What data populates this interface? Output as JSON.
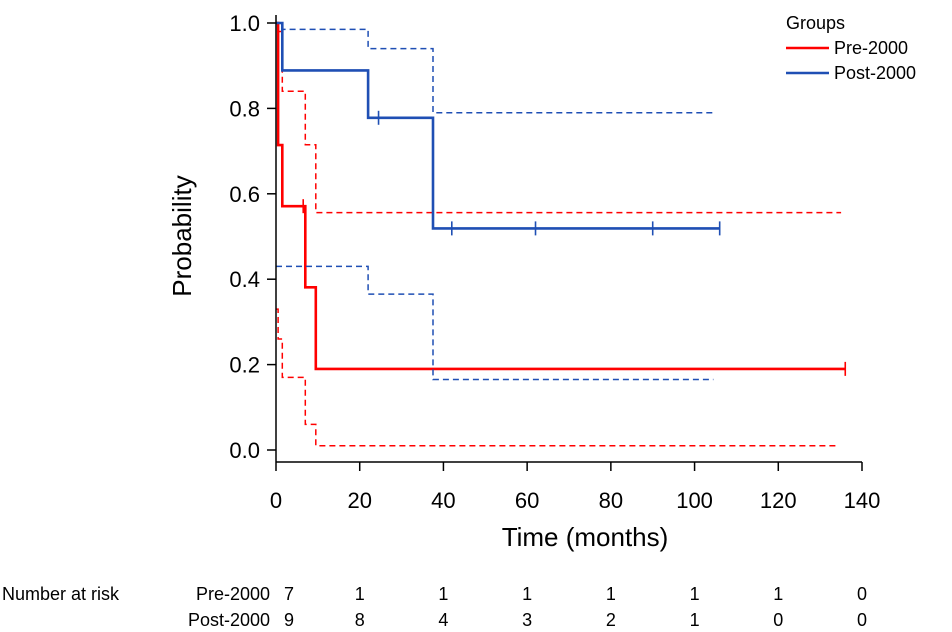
{
  "chart_data": {
    "type": "line",
    "subtype": "kaplan-meier",
    "xlabel": "Time (months)",
    "ylabel": "Probability",
    "xlim": [
      0,
      140
    ],
    "ylim": [
      0,
      1
    ],
    "x_ticks": [
      0,
      20,
      40,
      60,
      80,
      100,
      120,
      140
    ],
    "y_ticks": [
      0.0,
      0.2,
      0.4,
      0.6,
      0.8,
      1.0
    ],
    "x_tick_labels": [
      "0",
      "20",
      "40",
      "60",
      "80",
      "100",
      "120",
      "140"
    ],
    "y_tick_labels": [
      "0.0",
      "0.2",
      "0.4",
      "0.6",
      "0.8",
      "1.0"
    ],
    "grid": false,
    "legend": {
      "title": "Groups",
      "position": "top-right"
    },
    "series": [
      {
        "name": "Pre-2000",
        "color": "#ff0000",
        "survival": {
          "x": [
            0,
            0.5,
            1.5,
            7,
            9.5,
            136
          ],
          "y": [
            1.0,
            0.714,
            0.571,
            0.381,
            0.19,
            0.19
          ]
        },
        "censor_marks": [
          {
            "x": 6.5,
            "y": 0.571
          },
          {
            "x": 136,
            "y": 0.19
          }
        ],
        "ci_upper": {
          "x": [
            0,
            0.5,
            1.5,
            7,
            9.5,
            135
          ],
          "y": [
            1.0,
            0.98,
            0.84,
            0.715,
            0.556,
            0.556
          ]
        },
        "ci_lower": {
          "x": [
            0,
            0.5,
            1.5,
            7,
            9.5,
            134
          ],
          "y": [
            0.33,
            0.26,
            0.17,
            0.06,
            0.01,
            0.01
          ]
        }
      },
      {
        "name": "Post-2000",
        "color": "#1f4fb4",
        "survival": {
          "x": [
            0,
            1.5,
            22,
            37.5,
            106
          ],
          "y": [
            1.0,
            0.889,
            0.778,
            0.519,
            0.519
          ]
        },
        "censor_marks": [
          {
            "x": 24.5,
            "y": 0.778
          },
          {
            "x": 42,
            "y": 0.519
          },
          {
            "x": 62,
            "y": 0.519
          },
          {
            "x": 90,
            "y": 0.519
          },
          {
            "x": 106,
            "y": 0.519
          }
        ],
        "ci_upper": {
          "x": [
            0,
            1.5,
            22,
            37.5,
            104.5
          ],
          "y": [
            1.0,
            0.985,
            0.94,
            0.79,
            0.79
          ]
        },
        "ci_lower": {
          "x": [
            0,
            1.5,
            22,
            37.5,
            104.5
          ],
          "y": [
            0.43,
            0.43,
            0.365,
            0.165,
            0.165
          ]
        }
      }
    ],
    "risk_table": {
      "title": "Number at risk",
      "times": [
        0,
        20,
        40,
        60,
        80,
        100,
        120,
        140
      ],
      "rows": [
        {
          "label": "Pre-2000",
          "values": [
            "7",
            "1",
            "1",
            "1",
            "1",
            "1",
            "1",
            "0"
          ]
        },
        {
          "label": "Post-2000",
          "values": [
            "9",
            "8",
            "4",
            "3",
            "2",
            "1",
            "0",
            "0"
          ]
        }
      ]
    }
  }
}
